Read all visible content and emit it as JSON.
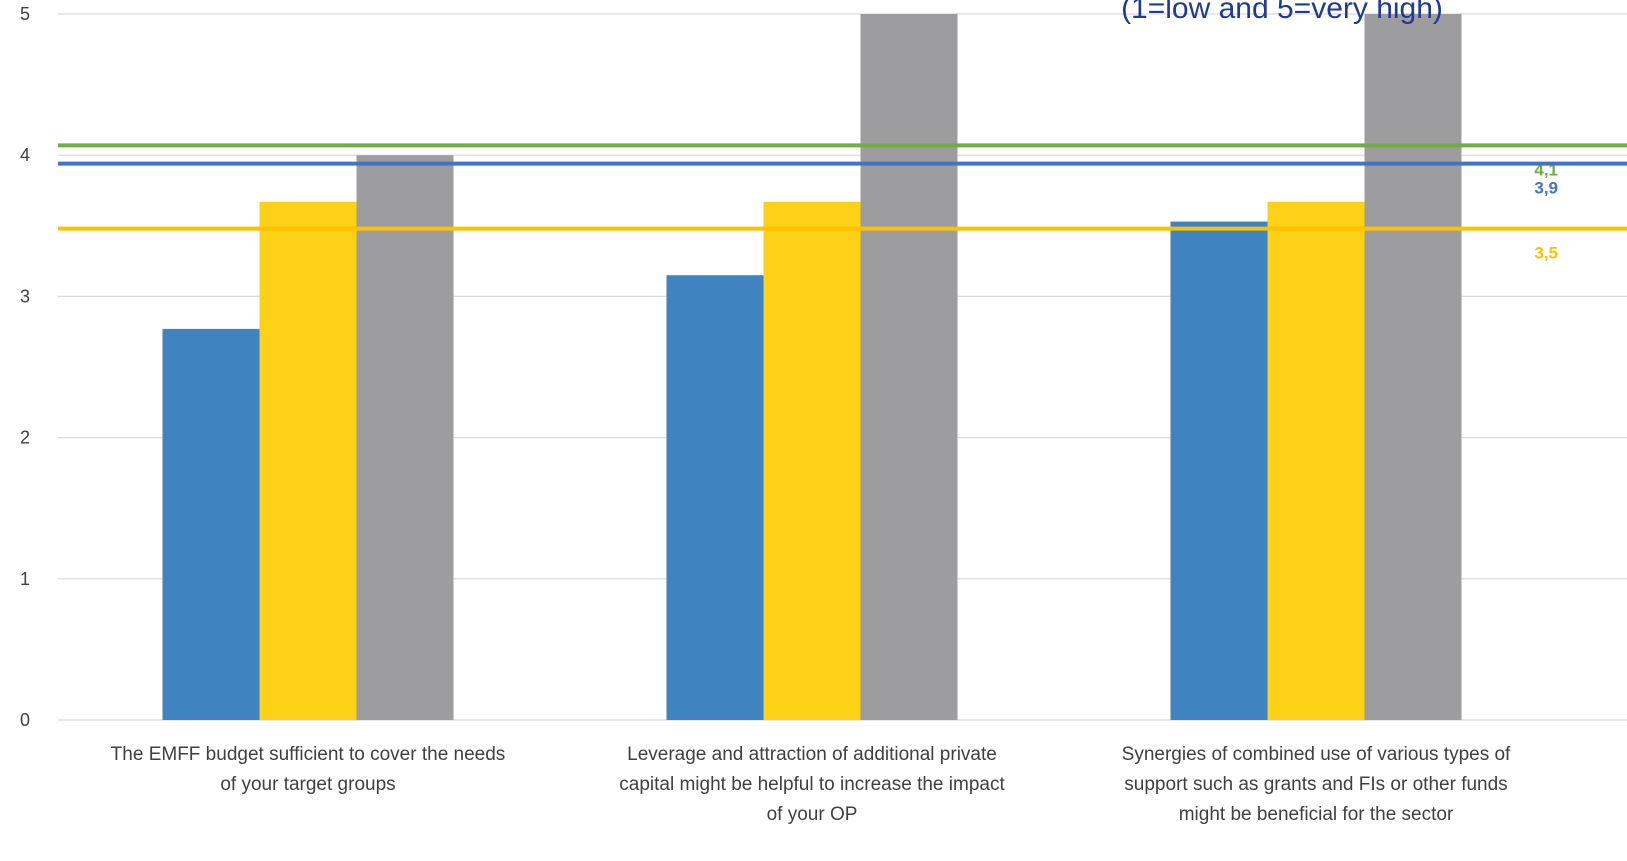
{
  "chart_data": {
    "type": "bar",
    "title": "(1=low and 5=very high)",
    "categories": [
      [
        "The EMFF budget sufficient to cover the needs",
        "of your target groups"
      ],
      [
        "Leverage and attraction of additional private",
        "capital might be helpful to increase the impact",
        "of your OP"
      ],
      [
        "Synergies of combined use of various types of",
        "support such as grants and FIs or other funds",
        "might be beneficial for the sector"
      ]
    ],
    "series": [
      {
        "values": [
          2.77,
          3.15,
          3.53
        ],
        "color": "#3f83c1"
      },
      {
        "values": [
          3.67,
          3.67,
          3.67
        ],
        "color": "#fcd116"
      },
      {
        "values": [
          4.0,
          5.0,
          5.0
        ],
        "color": "#9d9d9f"
      }
    ],
    "reference_lines": [
      {
        "value": 4.07,
        "label": "4,1",
        "color": "#70ad47"
      },
      {
        "value": 3.94,
        "label": "3,9",
        "color": "#4472c4"
      },
      {
        "value": 3.48,
        "label": "3,5",
        "color": "#ffc000"
      }
    ],
    "ylim": [
      0,
      5
    ],
    "yticks": [
      "0",
      "1",
      "2",
      "3",
      "4",
      "5"
    ],
    "grid": true
  }
}
